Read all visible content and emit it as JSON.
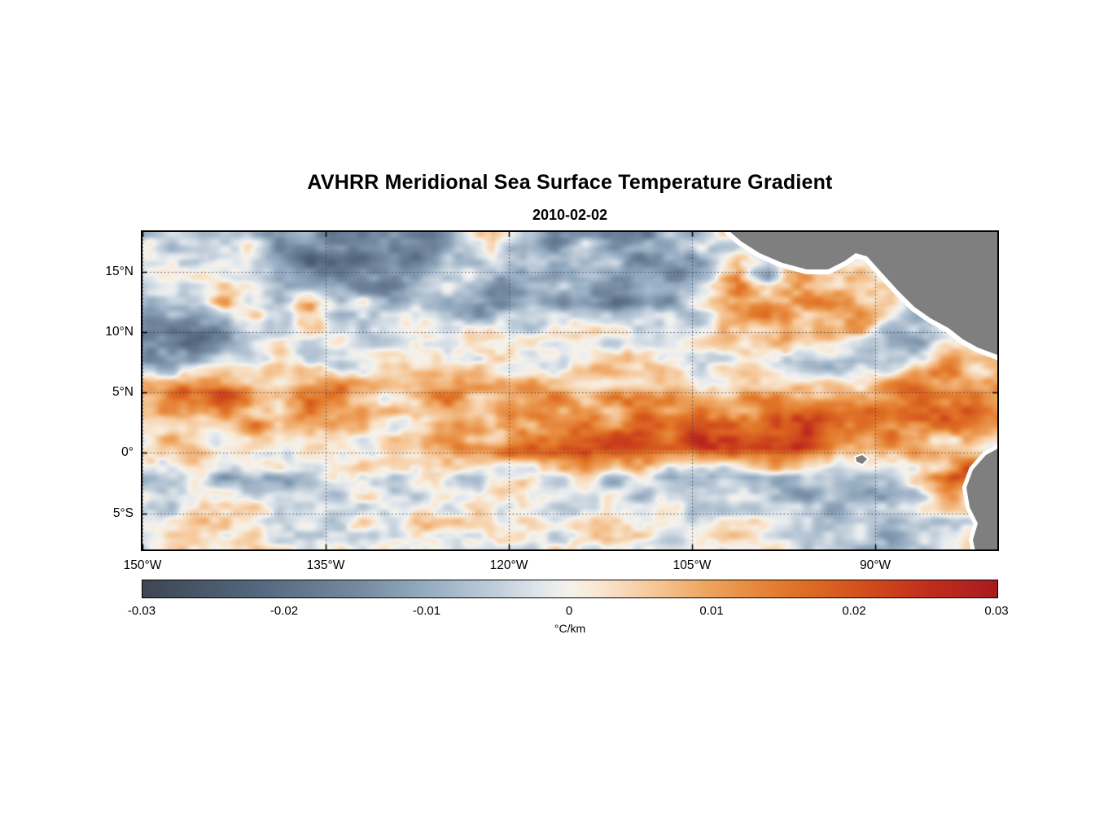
{
  "chart_data": {
    "type": "heatmap",
    "title": "AVHRR Meridional Sea Surface Temperature Gradient",
    "subtitle": "2010-02-02",
    "xlabel": "",
    "ylabel": "",
    "lon_range": [
      -150,
      -80
    ],
    "lat_range": [
      -8,
      18.3
    ],
    "value_range": [
      -0.03,
      0.03
    ],
    "grid_style": "dotted",
    "x_ticks": [
      {
        "value": -150,
        "label": "150°W"
      },
      {
        "value": -135,
        "label": "135°W"
      },
      {
        "value": -120,
        "label": "120°W"
      },
      {
        "value": -105,
        "label": "105°W"
      },
      {
        "value": -90,
        "label": "90°W"
      }
    ],
    "y_ticks": [
      {
        "value": 15,
        "label": "15°N"
      },
      {
        "value": 10,
        "label": "10°N"
      },
      {
        "value": 5,
        "label": "5°N"
      },
      {
        "value": 0,
        "label": "0°"
      },
      {
        "value": -5,
        "label": "5°S"
      }
    ],
    "colorbar": {
      "range": [
        -0.03,
        0.03
      ],
      "unit_label": "°C/km",
      "ticks": [
        {
          "value": -0.03,
          "label": "-0.03"
        },
        {
          "value": -0.02,
          "label": "-0.02"
        },
        {
          "value": -0.01,
          "label": "-0.01"
        },
        {
          "value": 0,
          "label": "0"
        },
        {
          "value": 0.01,
          "label": "0.01"
        },
        {
          "value": 0.02,
          "label": "0.02"
        },
        {
          "value": 0.03,
          "label": "0.03"
        }
      ]
    },
    "colormap_stops": [
      {
        "v": -0.03,
        "c": "#3e4651"
      },
      {
        "v": -0.022,
        "c": "#53677e"
      },
      {
        "v": -0.015,
        "c": "#74899f"
      },
      {
        "v": -0.01,
        "c": "#96acc1"
      },
      {
        "v": -0.005,
        "c": "#c2cfdb"
      },
      {
        "v": -0.002,
        "c": "#e1e7ec"
      },
      {
        "v": 0.0,
        "c": "#f5f2ec"
      },
      {
        "v": 0.002,
        "c": "#f8e7d2"
      },
      {
        "v": 0.006,
        "c": "#f5c697"
      },
      {
        "v": 0.01,
        "c": "#eda15b"
      },
      {
        "v": 0.015,
        "c": "#e2782a"
      },
      {
        "v": 0.02,
        "c": "#d4531d"
      },
      {
        "v": 0.025,
        "c": "#c22e1c"
      },
      {
        "v": 0.03,
        "c": "#a81a20"
      }
    ],
    "noise_amp": 0.006,
    "grid": {
      "comment": "approx meridional SST gradient (scale * value = degC/km), 28 lon cols from 150W to 80W, 11 lat rows from 18.3N to 8S",
      "scale": 0.001,
      "cols": 28,
      "rows": 11,
      "values": [
        [
          -2,
          -1,
          -2,
          -3,
          -10,
          -16,
          -18,
          -14,
          -16,
          -18,
          -8,
          4,
          -12,
          -16,
          -6,
          -14,
          -16,
          -12,
          -4,
          0,
          -2,
          0,
          1,
          0,
          0,
          1,
          0,
          0
        ],
        [
          -2,
          -3,
          -2,
          -4,
          -8,
          -20,
          -22,
          -16,
          -18,
          -10,
          -6,
          -8,
          -10,
          -8,
          -4,
          -6,
          -10,
          -16,
          -6,
          14,
          -12,
          10,
          -2,
          2,
          1,
          0,
          0,
          0
        ],
        [
          -4,
          -2,
          4,
          2,
          -2,
          8,
          -4,
          -6,
          -4,
          -6,
          -10,
          -14,
          -12,
          -8,
          -10,
          -14,
          -10,
          -8,
          -2,
          10,
          12,
          8,
          12,
          10,
          4,
          -4,
          -6,
          -4
        ],
        [
          -18,
          -22,
          -16,
          -6,
          -2,
          0,
          -2,
          -4,
          -2,
          0,
          2,
          0,
          -2,
          0,
          2,
          0,
          -2,
          0,
          2,
          4,
          8,
          12,
          10,
          6,
          -8,
          -12,
          -6,
          -2
        ],
        [
          -16,
          -14,
          -8,
          -2,
          0,
          -2,
          -10,
          -4,
          0,
          2,
          0,
          2,
          0,
          -2,
          0,
          2,
          4,
          2,
          0,
          2,
          0,
          -4,
          -6,
          -8,
          -6,
          2,
          8,
          4
        ],
        [
          10,
          20,
          22,
          14,
          8,
          12,
          14,
          6,
          4,
          12,
          12,
          6,
          8,
          8,
          6,
          8,
          6,
          8,
          6,
          6,
          8,
          6,
          4,
          6,
          14,
          18,
          16,
          12
        ],
        [
          6,
          10,
          8,
          10,
          6,
          14,
          12,
          4,
          2,
          6,
          8,
          4,
          10,
          12,
          8,
          14,
          16,
          14,
          16,
          18,
          20,
          22,
          20,
          16,
          18,
          20,
          16,
          12
        ],
        [
          2,
          4,
          2,
          4,
          2,
          4,
          2,
          4,
          6,
          8,
          14,
          12,
          16,
          14,
          20,
          22,
          18,
          20,
          22,
          22,
          24,
          22,
          18,
          12,
          8,
          6,
          4,
          2
        ],
        [
          -4,
          -2,
          -8,
          -8,
          -6,
          -2,
          -4,
          -2,
          -4,
          -2,
          -8,
          -4,
          -2,
          -4,
          -2,
          -6,
          -4,
          -12,
          -10,
          -8,
          -6,
          -10,
          -8,
          -6,
          -4,
          2,
          18,
          22
        ],
        [
          -4,
          -2,
          2,
          4,
          -6,
          -8,
          -4,
          -2,
          0,
          2,
          -2,
          0,
          2,
          -2,
          0,
          -2,
          -4,
          -2,
          -4,
          -2,
          -4,
          -6,
          -8,
          -6,
          -8,
          -4,
          2,
          0
        ],
        [
          0,
          2,
          4,
          2,
          -2,
          -4,
          -2,
          0,
          2,
          4,
          2,
          0,
          -2,
          0,
          2,
          0,
          -2,
          -4,
          -2,
          0,
          -2,
          -4,
          -6,
          -8,
          -10,
          -8,
          -4,
          0
        ]
      ]
    },
    "land_color": "#7f7f7f",
    "coast_color": "#ffffff",
    "land": {
      "polygons": [
        {
          "name": "central-america",
          "coast_width": 12,
          "points": [
            [
              716,
              -8
            ],
            [
              722,
              0
            ],
            [
              736,
              12
            ],
            [
              758,
              26
            ],
            [
              786,
              38
            ],
            [
              816,
              46
            ],
            [
              842,
              46
            ],
            [
              862,
              36
            ],
            [
              876,
              26
            ],
            [
              890,
              30
            ],
            [
              908,
              50
            ],
            [
              928,
              72
            ],
            [
              948,
              92
            ],
            [
              968,
              106
            ],
            [
              990,
              118
            ],
            [
              1008,
              132
            ],
            [
              1026,
              142
            ],
            [
              1042,
              148
            ],
            [
              1058,
              154
            ],
            [
              1058,
              -8
            ]
          ]
        },
        {
          "name": "south-america",
          "coast_width": 10,
          "points": [
            [
              1058,
              262
            ],
            [
              1036,
              274
            ],
            [
              1020,
              292
            ],
            [
              1012,
              314
            ],
            [
              1016,
              338
            ],
            [
              1026,
              358
            ],
            [
              1020,
              378
            ],
            [
              1024,
              398
            ],
            [
              1058,
              398
            ]
          ]
        },
        {
          "name": "galapagos-islands",
          "coast_width": 4,
          "points": [
            [
              876,
              277
            ],
            [
              884,
              274
            ],
            [
              890,
              279
            ],
            [
              884,
              285
            ],
            [
              877,
              282
            ]
          ]
        }
      ]
    }
  }
}
